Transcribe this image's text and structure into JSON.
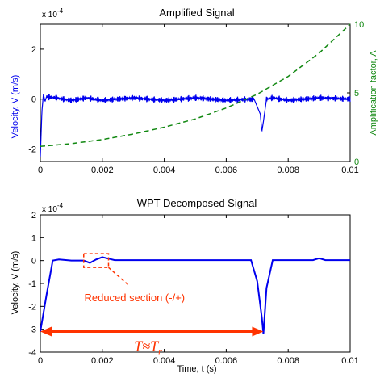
{
  "chart_data": [
    {
      "type": "line",
      "title": "Amplified Signal",
      "xlabel": "",
      "ylabel": "Velocity, V (m/s)",
      "ylabel2": "Amplification factor, A",
      "y_multiplier": "x 10",
      "y_multiplier_exp": "-4",
      "xlim": [
        0,
        0.01
      ],
      "ylim": [
        -2.5,
        3
      ],
      "y2lim": [
        0,
        10
      ],
      "x_ticks": [
        "0",
        "0.002",
        "0.004",
        "0.006",
        "0.008",
        "0.01"
      ],
      "y_ticks": [
        "-2",
        "0",
        "2"
      ],
      "y2_ticks": [
        "0",
        "5",
        "10"
      ],
      "colors": {
        "velocity": "#0000ee",
        "amplification": "#118811"
      },
      "series": [
        {
          "kind": "velocity-noise",
          "axis": "left",
          "color": "#0000ee",
          "x": [
            0,
            5e-05,
            0.0001,
            0.00015,
            0.0002,
            0.0005,
            0.001,
            0.0015,
            0.002,
            0.003,
            0.004,
            0.005,
            0.006,
            0.0069,
            0.0071,
            0.00715,
            0.0072,
            0.0073,
            0.0075,
            0.008,
            0.009,
            0.01
          ],
          "y": [
            -2.3,
            -0.5,
            0.2,
            -0.1,
            0.1,
            0.05,
            -0.05,
            0.05,
            -0.05,
            0.05,
            -0.05,
            0.05,
            -0.05,
            0,
            -0.6,
            -1.3,
            -0.9,
            0,
            0.05,
            -0.05,
            0.05,
            0
          ]
        },
        {
          "kind": "amplification",
          "axis": "right",
          "color": "#118811",
          "dashed": true,
          "x": [
            0,
            0.001,
            0.002,
            0.003,
            0.004,
            0.005,
            0.006,
            0.007,
            0.008,
            0.009,
            0.01
          ],
          "y": [
            1.1,
            1.3,
            1.6,
            2.0,
            2.5,
            3.1,
            3.9,
            4.9,
            6.2,
            7.9,
            10
          ]
        }
      ]
    },
    {
      "type": "line",
      "title": "WPT Decomposed Signal",
      "xlabel": "Time, t (s)",
      "ylabel": "Velocity, V (m/s)",
      "y_multiplier": "x 10",
      "y_multiplier_exp": "-4",
      "xlim": [
        0,
        0.01
      ],
      "ylim": [
        -4,
        2
      ],
      "x_ticks": [
        "0",
        "0.002",
        "0.004",
        "0.006",
        "0.008",
        "0.01"
      ],
      "y_ticks": [
        "-4",
        "-3",
        "-2",
        "-1",
        "0",
        "1",
        "2"
      ],
      "colors": {
        "velocity": "#0000ee",
        "annotation": "#ff3300"
      },
      "series": [
        {
          "kind": "velocity",
          "color": "#0000ee",
          "x": [
            0,
            0.0002,
            0.0004,
            0.0006,
            0.001,
            0.0014,
            0.0016,
            0.0018,
            0.002,
            0.0024,
            0.003,
            0.004,
            0.005,
            0.006,
            0.0068,
            0.007,
            0.00715,
            0.0072,
            0.0073,
            0.0075,
            0.008,
            0.0088,
            0.009,
            0.0092,
            0.0095,
            0.01
          ],
          "y": [
            -3.1,
            -1.5,
            0,
            0.05,
            0,
            0,
            -0.1,
            0.05,
            0.15,
            0.02,
            0.02,
            0.02,
            0.02,
            0.02,
            0.02,
            -0.9,
            -2.5,
            -3.2,
            -1.2,
            0.02,
            0.02,
            0.02,
            0.1,
            0.02,
            0.02,
            0.02
          ]
        }
      ],
      "annotations": {
        "reduced_section": {
          "label": "Reduced section (-/+)",
          "x_range": [
            0.0014,
            0.0022
          ],
          "y_range": [
            -0.3,
            0.3
          ]
        },
        "period": {
          "label_base": "T",
          "label_approx": "≈T",
          "label_sub": "r",
          "x_from": 0.0,
          "x_to": 0.0072,
          "y": -3.1
        }
      }
    }
  ]
}
